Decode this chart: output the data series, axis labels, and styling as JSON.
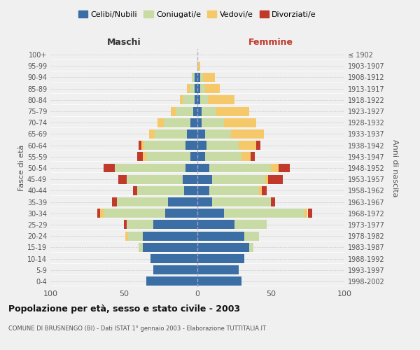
{
  "age_groups": [
    "0-4",
    "5-9",
    "10-14",
    "15-19",
    "20-24",
    "25-29",
    "30-34",
    "35-39",
    "40-44",
    "45-49",
    "50-54",
    "55-59",
    "60-64",
    "65-69",
    "70-74",
    "75-79",
    "80-84",
    "85-89",
    "90-94",
    "95-99",
    "100+"
  ],
  "birth_years": [
    "1998-2002",
    "1993-1997",
    "1988-1992",
    "1983-1987",
    "1978-1982",
    "1973-1977",
    "1968-1972",
    "1963-1967",
    "1958-1962",
    "1953-1957",
    "1948-1952",
    "1943-1947",
    "1938-1942",
    "1933-1937",
    "1928-1932",
    "1923-1927",
    "1918-1922",
    "1913-1917",
    "1908-1912",
    "1903-1907",
    "≤ 1902"
  ],
  "maschi": {
    "celibi": [
      35,
      30,
      32,
      37,
      37,
      30,
      22,
      20,
      9,
      10,
      8,
      5,
      8,
      7,
      5,
      3,
      2,
      2,
      2,
      0,
      0
    ],
    "coniugati": [
      0,
      0,
      0,
      3,
      10,
      18,
      42,
      35,
      32,
      38,
      48,
      30,
      28,
      22,
      18,
      12,
      8,
      3,
      2,
      0,
      0
    ],
    "vedovi": [
      0,
      0,
      0,
      0,
      2,
      0,
      2,
      0,
      0,
      0,
      0,
      2,
      2,
      4,
      4,
      3,
      2,
      2,
      0,
      0,
      0
    ],
    "divorziati": [
      0,
      0,
      0,
      0,
      0,
      2,
      2,
      3,
      3,
      6,
      8,
      4,
      2,
      0,
      0,
      0,
      0,
      0,
      0,
      0,
      0
    ]
  },
  "femmine": {
    "nubili": [
      30,
      28,
      32,
      35,
      32,
      25,
      18,
      10,
      8,
      10,
      8,
      5,
      6,
      5,
      3,
      3,
      2,
      2,
      2,
      0,
      0
    ],
    "coniugate": [
      0,
      0,
      0,
      3,
      10,
      22,
      55,
      40,
      34,
      36,
      42,
      25,
      22,
      18,
      15,
      10,
      5,
      3,
      2,
      0,
      0
    ],
    "vedove": [
      0,
      0,
      0,
      0,
      0,
      0,
      2,
      0,
      2,
      2,
      5,
      6,
      12,
      22,
      22,
      22,
      18,
      10,
      8,
      2,
      0
    ],
    "divorziate": [
      0,
      0,
      0,
      0,
      0,
      0,
      3,
      3,
      3,
      10,
      8,
      3,
      3,
      0,
      0,
      0,
      0,
      0,
      0,
      0,
      0
    ]
  },
  "colors": {
    "celibi": "#3a6ea5",
    "coniugati": "#c8dba4",
    "vedovi": "#f5c96a",
    "divorziati": "#c0392b"
  },
  "title": "Popolazione per età, sesso e stato civile - 2003",
  "subtitle": "COMUNE DI BRUSNENGO (BI) - Dati ISTAT 1° gennaio 2003 - Elaborazione TUTTITALIA.IT",
  "xlabel_left": "Maschi",
  "xlabel_right": "Femmine",
  "ylabel_left": "Fasce di età",
  "ylabel_right": "Anni di nascita",
  "xlim": 100,
  "background_color": "#f0f0f0",
  "legend_labels": [
    "Celibi/Nubili",
    "Coniugati/e",
    "Vedovi/e",
    "Divorziati/e"
  ]
}
